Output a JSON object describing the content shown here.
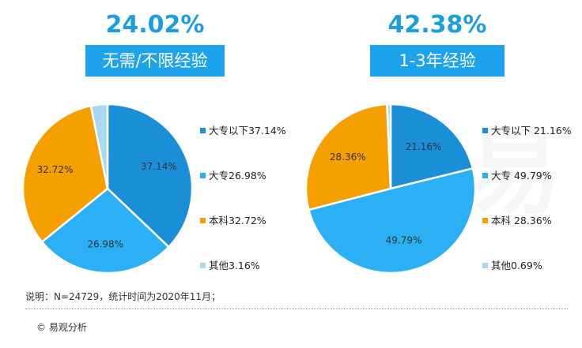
{
  "colors": {
    "accent": "#1ca3ec",
    "slice_dark_blue": "#1a8fd8",
    "slice_light_blue": "#2cb0f5",
    "slice_orange": "#f6a000",
    "slice_pale_blue": "#aad8f3"
  },
  "chart_data": [
    {
      "type": "pie",
      "headline_pct": "24.02%",
      "title": "无需/不限经验",
      "slices": [
        {
          "name": "大专以下",
          "value": 37.14,
          "label": "37.14%",
          "legend": "大专以下37.14%",
          "color": "#1a8fd8"
        },
        {
          "name": "大专",
          "value": 26.98,
          "label": "26.98%",
          "legend": "大专26.98%",
          "color": "#2cb0f5"
        },
        {
          "name": "本科",
          "value": 32.72,
          "label": "32.72%",
          "legend": "本科32.72%",
          "color": "#f6a000"
        },
        {
          "name": "其他",
          "value": 3.16,
          "label": "",
          "legend": "其他3.16%",
          "color": "#aad8f3"
        }
      ],
      "legend_position": "right"
    },
    {
      "type": "pie",
      "headline_pct": "42.38%",
      "title": "1-3年经验",
      "slices": [
        {
          "name": "大专以下",
          "value": 21.16,
          "label": "21.16%",
          "legend": "大专以下 21.16%",
          "color": "#1a8fd8"
        },
        {
          "name": "大专",
          "value": 49.79,
          "label": "49.79%",
          "legend": "大专 49.79%",
          "color": "#2cb0f5"
        },
        {
          "name": "本科",
          "value": 28.36,
          "label": "28.36%",
          "legend": "本科 28.36%",
          "color": "#f6a000"
        },
        {
          "name": "其他",
          "value": 0.69,
          "label": "",
          "legend": "其他0.69%",
          "color": "#aad8f3"
        }
      ],
      "legend_position": "right"
    }
  ],
  "note": "说明：N=24729，统计时间为2020年11月；",
  "footer": "© 易观分析"
}
